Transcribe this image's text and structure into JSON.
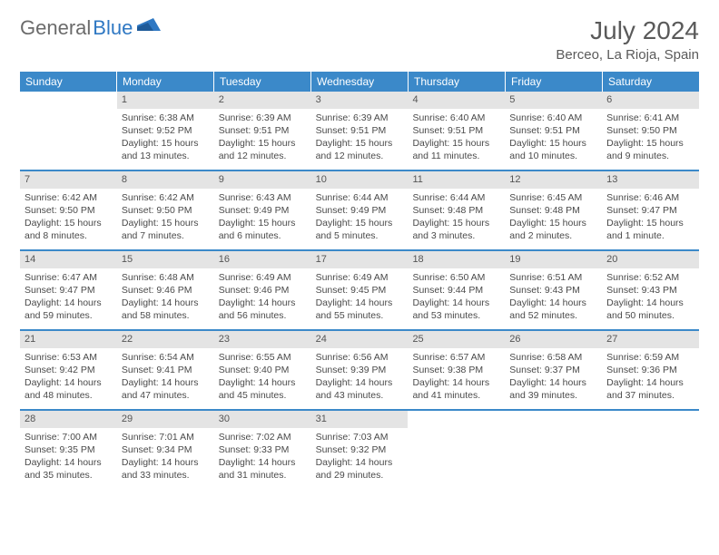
{
  "brand": {
    "part1": "General",
    "part2": "Blue"
  },
  "title": "July 2024",
  "location": "Berceo, La Rioja, Spain",
  "colors": {
    "header_bg": "#3b89c9",
    "header_text": "#ffffff",
    "daynum_bg": "#e4e4e4",
    "text": "#4a4a4a",
    "title": "#5a5a5a",
    "brand_gray": "#6b6b6b",
    "brand_blue": "#2f78c3",
    "rule": "#3b89c9"
  },
  "weekdays": [
    "Sunday",
    "Monday",
    "Tuesday",
    "Wednesday",
    "Thursday",
    "Friday",
    "Saturday"
  ],
  "weeks": [
    [
      {
        "empty": true
      },
      {
        "n": "1",
        "sunrise": "6:38 AM",
        "sunset": "9:52 PM",
        "daylight": "15 hours and 13 minutes."
      },
      {
        "n": "2",
        "sunrise": "6:39 AM",
        "sunset": "9:51 PM",
        "daylight": "15 hours and 12 minutes."
      },
      {
        "n": "3",
        "sunrise": "6:39 AM",
        "sunset": "9:51 PM",
        "daylight": "15 hours and 12 minutes."
      },
      {
        "n": "4",
        "sunrise": "6:40 AM",
        "sunset": "9:51 PM",
        "daylight": "15 hours and 11 minutes."
      },
      {
        "n": "5",
        "sunrise": "6:40 AM",
        "sunset": "9:51 PM",
        "daylight": "15 hours and 10 minutes."
      },
      {
        "n": "6",
        "sunrise": "6:41 AM",
        "sunset": "9:50 PM",
        "daylight": "15 hours and 9 minutes."
      }
    ],
    [
      {
        "n": "7",
        "sunrise": "6:42 AM",
        "sunset": "9:50 PM",
        "daylight": "15 hours and 8 minutes."
      },
      {
        "n": "8",
        "sunrise": "6:42 AM",
        "sunset": "9:50 PM",
        "daylight": "15 hours and 7 minutes."
      },
      {
        "n": "9",
        "sunrise": "6:43 AM",
        "sunset": "9:49 PM",
        "daylight": "15 hours and 6 minutes."
      },
      {
        "n": "10",
        "sunrise": "6:44 AM",
        "sunset": "9:49 PM",
        "daylight": "15 hours and 5 minutes."
      },
      {
        "n": "11",
        "sunrise": "6:44 AM",
        "sunset": "9:48 PM",
        "daylight": "15 hours and 3 minutes."
      },
      {
        "n": "12",
        "sunrise": "6:45 AM",
        "sunset": "9:48 PM",
        "daylight": "15 hours and 2 minutes."
      },
      {
        "n": "13",
        "sunrise": "6:46 AM",
        "sunset": "9:47 PM",
        "daylight": "15 hours and 1 minute."
      }
    ],
    [
      {
        "n": "14",
        "sunrise": "6:47 AM",
        "sunset": "9:47 PM",
        "daylight": "14 hours and 59 minutes."
      },
      {
        "n": "15",
        "sunrise": "6:48 AM",
        "sunset": "9:46 PM",
        "daylight": "14 hours and 58 minutes."
      },
      {
        "n": "16",
        "sunrise": "6:49 AM",
        "sunset": "9:46 PM",
        "daylight": "14 hours and 56 minutes."
      },
      {
        "n": "17",
        "sunrise": "6:49 AM",
        "sunset": "9:45 PM",
        "daylight": "14 hours and 55 minutes."
      },
      {
        "n": "18",
        "sunrise": "6:50 AM",
        "sunset": "9:44 PM",
        "daylight": "14 hours and 53 minutes."
      },
      {
        "n": "19",
        "sunrise": "6:51 AM",
        "sunset": "9:43 PM",
        "daylight": "14 hours and 52 minutes."
      },
      {
        "n": "20",
        "sunrise": "6:52 AM",
        "sunset": "9:43 PM",
        "daylight": "14 hours and 50 minutes."
      }
    ],
    [
      {
        "n": "21",
        "sunrise": "6:53 AM",
        "sunset": "9:42 PM",
        "daylight": "14 hours and 48 minutes."
      },
      {
        "n": "22",
        "sunrise": "6:54 AM",
        "sunset": "9:41 PM",
        "daylight": "14 hours and 47 minutes."
      },
      {
        "n": "23",
        "sunrise": "6:55 AM",
        "sunset": "9:40 PM",
        "daylight": "14 hours and 45 minutes."
      },
      {
        "n": "24",
        "sunrise": "6:56 AM",
        "sunset": "9:39 PM",
        "daylight": "14 hours and 43 minutes."
      },
      {
        "n": "25",
        "sunrise": "6:57 AM",
        "sunset": "9:38 PM",
        "daylight": "14 hours and 41 minutes."
      },
      {
        "n": "26",
        "sunrise": "6:58 AM",
        "sunset": "9:37 PM",
        "daylight": "14 hours and 39 minutes."
      },
      {
        "n": "27",
        "sunrise": "6:59 AM",
        "sunset": "9:36 PM",
        "daylight": "14 hours and 37 minutes."
      }
    ],
    [
      {
        "n": "28",
        "sunrise": "7:00 AM",
        "sunset": "9:35 PM",
        "daylight": "14 hours and 35 minutes."
      },
      {
        "n": "29",
        "sunrise": "7:01 AM",
        "sunset": "9:34 PM",
        "daylight": "14 hours and 33 minutes."
      },
      {
        "n": "30",
        "sunrise": "7:02 AM",
        "sunset": "9:33 PM",
        "daylight": "14 hours and 31 minutes."
      },
      {
        "n": "31",
        "sunrise": "7:03 AM",
        "sunset": "9:32 PM",
        "daylight": "14 hours and 29 minutes."
      },
      {
        "empty": true
      },
      {
        "empty": true
      },
      {
        "empty": true
      }
    ]
  ],
  "labels": {
    "sunrise": "Sunrise:",
    "sunset": "Sunset:",
    "daylight": "Daylight:"
  }
}
